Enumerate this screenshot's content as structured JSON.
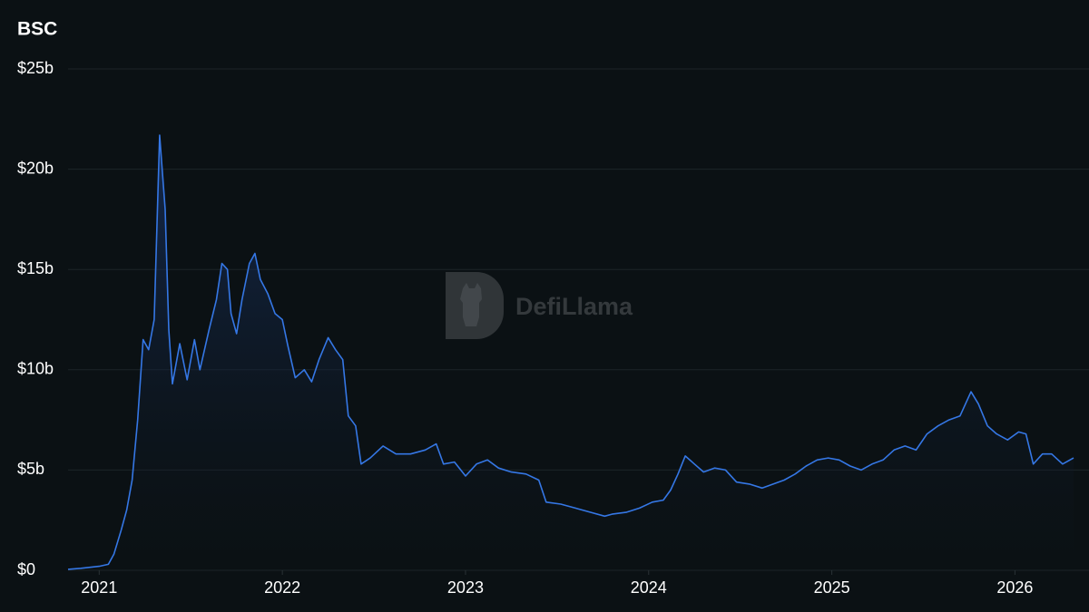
{
  "chart_data": {
    "type": "line",
    "title": "BSC",
    "watermark": "DefiLlama",
    "color": "#3577e5",
    "grid": true,
    "xlim": [
      2020.83,
      2026.32
    ],
    "xticks": [
      2021,
      2022,
      2023,
      2024,
      2025,
      2026
    ],
    "ylim": [
      0,
      25
    ],
    "yticks": [
      {
        "value": 0,
        "label": "$0"
      },
      {
        "value": 5,
        "label": "$5b"
      },
      {
        "value": 10,
        "label": "$10b"
      },
      {
        "value": 15,
        "label": "$15b"
      },
      {
        "value": 20,
        "label": "$20b"
      },
      {
        "value": 25,
        "label": "$25b"
      }
    ],
    "series": [
      {
        "name": "BSC",
        "color": "#3577e5",
        "x": [
          2020.83,
          2020.9,
          2021.0,
          2021.05,
          2021.08,
          2021.12,
          2021.15,
          2021.18,
          2021.21,
          2021.24,
          2021.27,
          2021.3,
          2021.33,
          2021.36,
          2021.38,
          2021.4,
          2021.44,
          2021.48,
          2021.52,
          2021.55,
          2021.6,
          2021.64,
          2021.67,
          2021.7,
          2021.72,
          2021.75,
          2021.78,
          2021.82,
          2021.85,
          2021.88,
          2021.92,
          2021.96,
          2022.0,
          2022.03,
          2022.07,
          2022.12,
          2022.16,
          2022.2,
          2022.25,
          2022.29,
          2022.33,
          2022.36,
          2022.4,
          2022.43,
          2022.48,
          2022.55,
          2022.62,
          2022.7,
          2022.78,
          2022.84,
          2022.88,
          2022.94,
          2023.0,
          2023.06,
          2023.12,
          2023.18,
          2023.25,
          2023.33,
          2023.4,
          2023.44,
          2023.52,
          2023.6,
          2023.68,
          2023.76,
          2023.8,
          2023.88,
          2023.95,
          2024.02,
          2024.08,
          2024.12,
          2024.16,
          2024.2,
          2024.25,
          2024.3,
          2024.36,
          2024.42,
          2024.48,
          2024.55,
          2024.62,
          2024.68,
          2024.74,
          2024.8,
          2024.86,
          2024.92,
          2024.98,
          2025.04,
          2025.1,
          2025.16,
          2025.22,
          2025.28,
          2025.34,
          2025.4,
          2025.46,
          2025.52,
          2025.58,
          2025.64,
          2025.7,
          2025.76,
          2025.8,
          2025.85,
          2025.9,
          2025.96,
          2026.02,
          2026.06,
          2026.1,
          2026.15,
          2026.2,
          2026.26,
          2026.32
        ],
        "values": [
          0.05,
          0.1,
          0.2,
          0.3,
          0.8,
          2.0,
          3.0,
          4.5,
          7.5,
          11.5,
          11.0,
          12.5,
          21.7,
          18,
          12,
          9.3,
          11.3,
          9.5,
          11.5,
          10.0,
          12.0,
          13.5,
          15.3,
          15.0,
          12.8,
          11.8,
          13.5,
          15.3,
          15.8,
          14.5,
          13.8,
          12.8,
          12.5,
          11.2,
          9.6,
          10.0,
          9.4,
          10.5,
          11.6,
          11.0,
          10.5,
          7.7,
          7.2,
          5.3,
          5.6,
          6.2,
          5.8,
          5.8,
          6.0,
          6.3,
          5.3,
          5.4,
          4.7,
          5.3,
          5.5,
          5.1,
          4.9,
          4.8,
          4.5,
          3.4,
          3.3,
          3.1,
          2.9,
          2.7,
          2.8,
          2.9,
          3.1,
          3.4,
          3.5,
          4.0,
          4.8,
          5.7,
          5.3,
          4.9,
          5.1,
          5.0,
          4.4,
          4.3,
          4.1,
          4.3,
          4.5,
          4.8,
          5.2,
          5.5,
          5.6,
          5.5,
          5.2,
          5.0,
          5.3,
          5.5,
          6.0,
          6.2,
          6.0,
          6.8,
          7.2,
          7.5,
          7.7,
          8.9,
          8.3,
          7.2,
          6.8,
          6.5,
          6.9,
          6.8,
          5.3,
          5.8,
          5.8,
          5.3,
          5.6
        ]
      }
    ]
  }
}
